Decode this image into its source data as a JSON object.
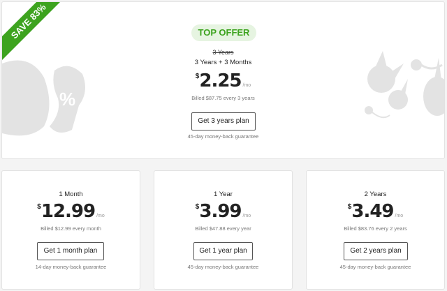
{
  "top_offer": {
    "ribbon": "SAVE 83%",
    "badge": "TOP OFFER",
    "original_period": "3 Years",
    "period": "3 Years + 3 Months",
    "currency": "$",
    "price": "2.25",
    "per": "/mo",
    "billed": "Billed $87.75 every 3 years",
    "button": "Get 3 years plan",
    "guarantee": "45-day money-back guarantee"
  },
  "plans": [
    {
      "period": "1 Month",
      "currency": "$",
      "price": "12.99",
      "per": "/mo",
      "billed": "Billed $12.99 every month",
      "button": "Get 1 month plan",
      "guarantee": "14-day money-back guarantee"
    },
    {
      "period": "1 Year",
      "currency": "$",
      "price": "3.99",
      "per": "/mo",
      "billed": "Billed $47.88 every year",
      "button": "Get 1 year plan",
      "guarantee": "45-day money-back guarantee"
    },
    {
      "period": "2 Years",
      "currency": "$",
      "price": "3.49",
      "per": "/mo",
      "billed": "Billed $83.76 every 2 years",
      "button": "Get 2 years plan",
      "guarantee": "45-day money-back guarantee"
    }
  ],
  "colors": {
    "accent": "#3da31f",
    "badge_bg": "#e6f4e1"
  }
}
